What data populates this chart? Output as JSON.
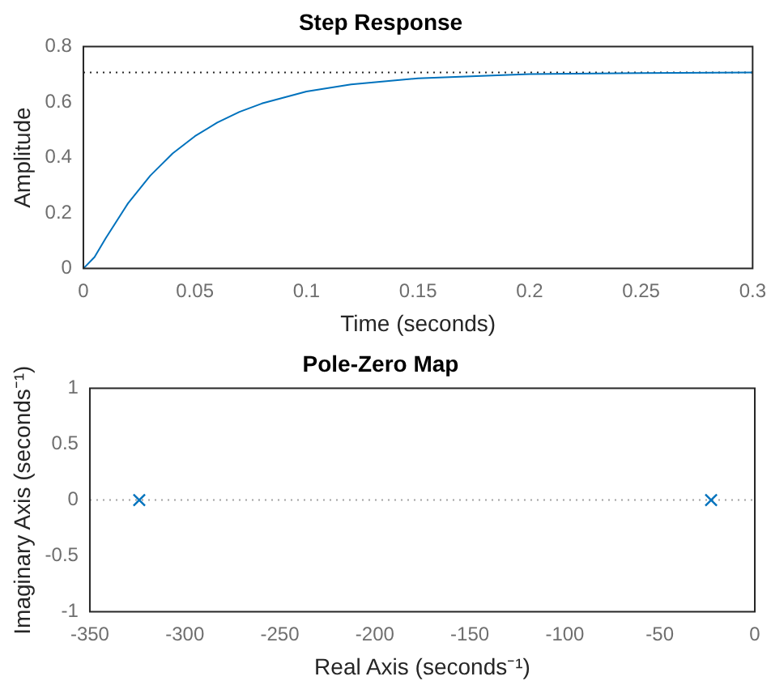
{
  "chart_data": [
    {
      "type": "line",
      "title": "Step Response",
      "xlabel": "Time (seconds)",
      "ylabel": "Amplitude",
      "x": [
        0,
        0.005,
        0.01,
        0.02,
        0.03,
        0.04,
        0.05,
        0.06,
        0.07,
        0.08,
        0.1,
        0.12,
        0.15,
        0.2,
        0.25,
        0.3
      ],
      "series": [
        {
          "color": "#0072bd",
          "values": [
            0,
            0.041,
            0.109,
            0.235,
            0.335,
            0.415,
            0.477,
            0.526,
            0.565,
            0.595,
            0.638,
            0.664,
            0.686,
            0.701,
            0.705,
            0.707
          ]
        }
      ],
      "xlim": [
        0,
        0.3
      ],
      "ylim": [
        0,
        0.8
      ],
      "xticks": [
        0,
        0.05,
        0.1,
        0.15,
        0.2,
        0.25,
        0.3
      ],
      "yticks": [
        0,
        0.2,
        0.4,
        0.6,
        0.8
      ],
      "ref_lines": [
        {
          "axis": "y",
          "value": 0.707,
          "color": "#262626",
          "line_style": "dotted"
        }
      ]
    },
    {
      "type": "scatter",
      "title": "Pole-Zero Map",
      "xlabel": "Real Axis (seconds⁻¹)",
      "ylabel": "Imaginary Axis (seconds⁻¹)",
      "x": [
        -324,
        -23
      ],
      "series": [
        {
          "color": "#0072bd",
          "values": [
            0,
            0
          ]
        }
      ],
      "marker": "cross",
      "xlim": [
        -350,
        0
      ],
      "ylim": [
        -1,
        1
      ],
      "xticks": [
        -350,
        -300,
        -250,
        -200,
        -150,
        -100,
        -50,
        0
      ],
      "yticks": [
        -1,
        -0.5,
        0,
        0.5,
        1
      ],
      "ref_lines": [
        {
          "axis": "y",
          "value": 0,
          "color": "#a0a0a0",
          "line_style": "dotted"
        }
      ]
    }
  ]
}
